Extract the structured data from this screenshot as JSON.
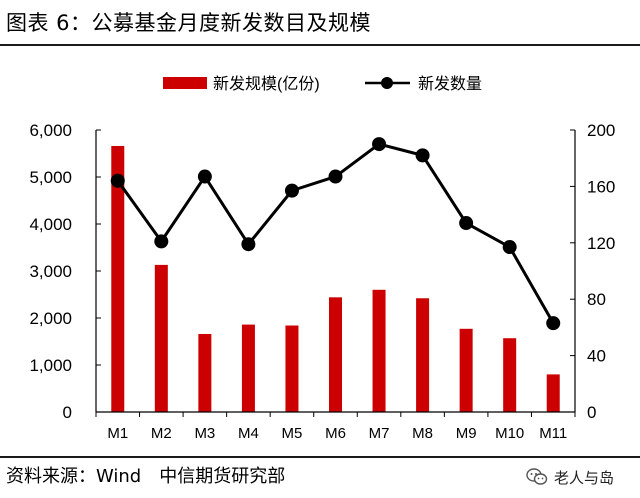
{
  "title": "图表 6：公募基金月度新发数目及规模",
  "source": {
    "label": "资料来源：Wind",
    "org": "中信期货研究部"
  },
  "watermark": {
    "text": "老人与岛",
    "icon": "wechat-icon"
  },
  "colors": {
    "bar": "#cc0000",
    "line": "#000000",
    "axis": "#000000"
  },
  "chart_data": {
    "type": "bar",
    "categories": [
      "M1",
      "M2",
      "M3",
      "M4",
      "M5",
      "M6",
      "M7",
      "M8",
      "M9",
      "M10",
      "M11"
    ],
    "series": [
      {
        "name": "新发规模(亿份)",
        "type": "bar",
        "axis": "left",
        "values": [
          5660,
          3130,
          1660,
          1860,
          1840,
          2440,
          2600,
          2420,
          1770,
          1570,
          800
        ]
      },
      {
        "name": "新发数量",
        "type": "line",
        "axis": "right",
        "values": [
          164,
          121,
          167,
          119,
          157,
          167,
          190,
          182,
          134,
          117,
          63
        ]
      }
    ],
    "yleft": {
      "ylim": [
        0,
        6000
      ],
      "ticks": [
        0,
        1000,
        2000,
        3000,
        4000,
        5000,
        6000
      ],
      "tick_labels": [
        "0",
        "1,000",
        "2,000",
        "3,000",
        "4,000",
        "5,000",
        "6,000"
      ]
    },
    "yright": {
      "ylim": [
        0,
        200
      ],
      "ticks": [
        0,
        40,
        80,
        120,
        160,
        200
      ],
      "tick_labels": [
        "0",
        "40",
        "80",
        "120",
        "160",
        "200"
      ]
    },
    "legend": "top-center",
    "grid": false
  }
}
